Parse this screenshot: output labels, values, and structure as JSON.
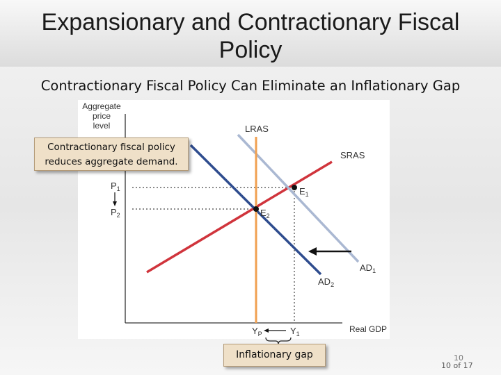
{
  "slide": {
    "title_line1": "Expansionary and Contractionary Fiscal",
    "title_line2": "Policy",
    "subtitle": "Contractionary Fiscal Policy Can Eliminate an Inflationary Gap",
    "page_number": "10",
    "page_count": "10 of 17"
  },
  "diagram": {
    "y_axis_label": [
      "Aggregate",
      "price",
      "level"
    ],
    "x_axis_label": "Real GDP",
    "curves": {
      "lras": "LRAS",
      "sras": "SRAS",
      "ad1": "AD",
      "ad1_sub": "1",
      "ad2": "AD",
      "ad2_sub": "2"
    },
    "points": {
      "e1": "E",
      "e1_sub": "1",
      "e2": "E",
      "e2_sub": "2"
    },
    "price_levels": {
      "p1": "P",
      "p1_sub": "1",
      "p2": "P",
      "p2_sub": "2"
    },
    "outputs": {
      "yp": "Y",
      "yp_sub": "P",
      "y1": "Y",
      "y1_sub": "1"
    },
    "callout": [
      "Contractionary fiscal policy",
      "reduces aggregate demand."
    ],
    "gap_label": "Inflationary gap",
    "colors": {
      "lras": "#f0a050",
      "sras": "#d0343c",
      "ad1": "#aab8d2",
      "ad2": "#2e4c8e",
      "callout_fill": "#efe0c8"
    }
  }
}
